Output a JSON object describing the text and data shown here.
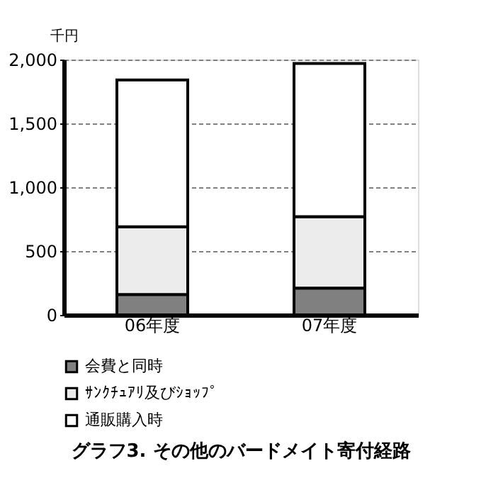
{
  "chart_data": {
    "type": "bar",
    "stacked": true,
    "title": "グラフ3. その他のバードメイト寄付経路",
    "ylabel": "千円",
    "categories": [
      "06年度",
      "07年度"
    ],
    "series": [
      {
        "name": "会費と同時",
        "color": "#808080",
        "values": [
          160,
          210
        ]
      },
      {
        "name": "ｻﾝｸﾁｭｱﾘ及びｼｮｯﾌﾟ",
        "color": "#ececec",
        "values": [
          530,
          560
        ]
      },
      {
        "name": "通販購入時",
        "color": "#ffffff",
        "values": [
          1150,
          1200
        ]
      }
    ],
    "ylim": [
      0,
      2000
    ],
    "yticks": [
      0,
      {
        "value": 500,
        "label": "500"
      },
      {
        "value": 1000,
        "label": "1,000"
      },
      {
        "value": 1500,
        "label": "1,500"
      },
      {
        "value": 2000,
        "label": "2,000"
      }
    ],
    "grid": "y",
    "legend": "bottom"
  }
}
